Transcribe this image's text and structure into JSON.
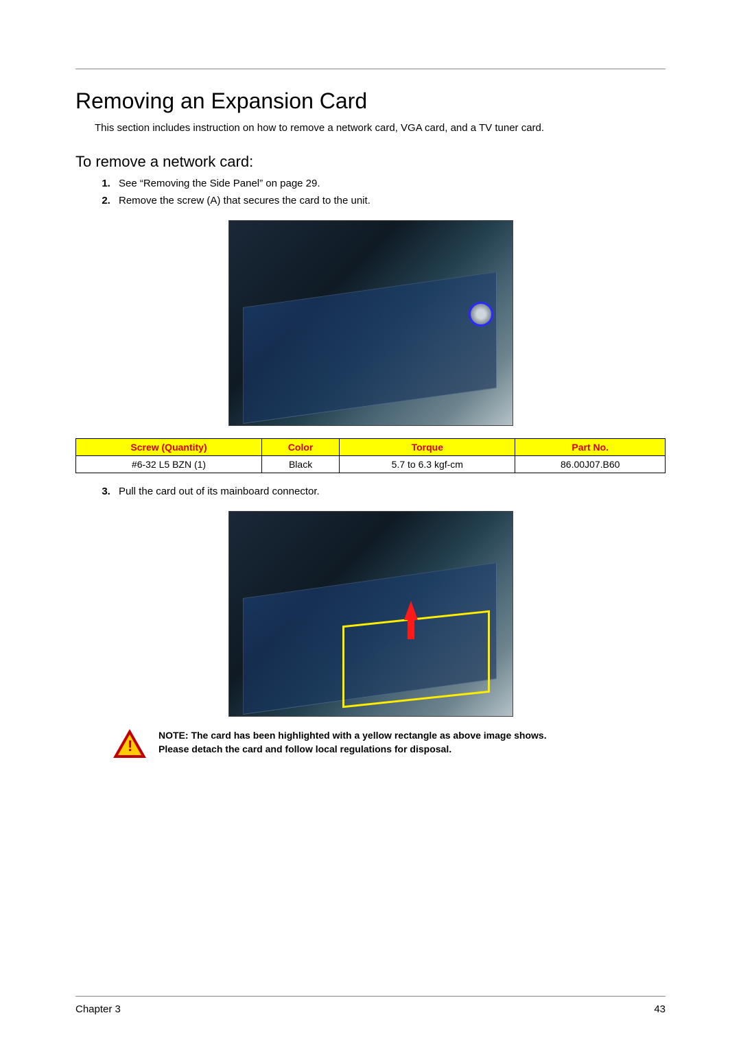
{
  "heading": "Removing an Expansion Card",
  "intro": "This section includes instruction on how to remove a network card, VGA card, and a TV tuner card.",
  "subheading": "To remove a network card:",
  "steps": {
    "s1": "See “Removing the Side Panel” on page 29.",
    "s2": "Remove the screw (A) that secures the card to the unit.",
    "s3": "Pull the card out of its mainboard connector."
  },
  "table": {
    "headers": {
      "screw": "Screw (Quantity)",
      "color": "Color",
      "torque": "Torque",
      "part": "Part No."
    },
    "row": {
      "screw": "#6-32 L5 BZN (1)",
      "color": "Black",
      "torque": "5.7 to 6.3 kgf-cm",
      "part": "86.00J07.B60"
    },
    "header_bg": "#ffff00",
    "header_fg": "#d40000",
    "border_color": "#000000"
  },
  "note": {
    "label": "NOTE:",
    "line1": "The card has been highlighted with a yellow rectangle as above image shows.",
    "line2": "Please detach the card and follow local regulations for disposal."
  },
  "footer": {
    "chapter": "Chapter 3",
    "page": "43"
  },
  "figure1": {
    "alt": "Motherboard with network card, screw A circled in blue",
    "circle_color": "#2a2aff"
  },
  "figure2": {
    "alt": "Motherboard with network card highlighted yellow, red arrow up",
    "rect_color": "#ffed00",
    "arrow_color": "#ff1a1a"
  },
  "icons": {
    "warning": "warning-triangle"
  },
  "colors": {
    "rule": "#888888",
    "text": "#000000",
    "warn_outer": "#c00000",
    "warn_inner": "#ffcc00"
  }
}
